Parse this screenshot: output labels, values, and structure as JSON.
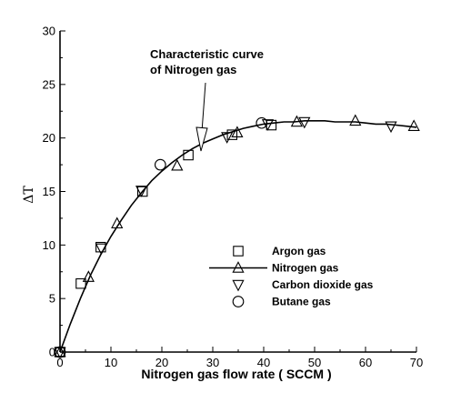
{
  "chart_data": {
    "type": "scatter",
    "xlabel": "Nitrogen gas flow rate ( SCCM )",
    "ylabel": "ΔT",
    "xlim": [
      0,
      70
    ],
    "ylim": [
      0,
      30
    ],
    "x_ticks": [
      0,
      10,
      20,
      30,
      40,
      50,
      60,
      70
    ],
    "y_ticks": [
      0,
      5,
      10,
      15,
      20,
      25,
      30
    ],
    "grid": false,
    "legend_placement": "lower-right",
    "annotation": {
      "lines": [
        "Characteristic curve",
        "of Nitrogen gas"
      ],
      "points_to": [
        28,
        18.5
      ]
    },
    "curve": {
      "name": "Nitrogen gas",
      "x": [
        0,
        2,
        4,
        6,
        8,
        10,
        12,
        14,
        16,
        18,
        20,
        22,
        24,
        26,
        28,
        30,
        32,
        34,
        36,
        38,
        40,
        42,
        44,
        46,
        48,
        50,
        52,
        54,
        56,
        58,
        60,
        62,
        64,
        66,
        68,
        70
      ],
      "y": [
        0,
        2.6,
        5.0,
        7.2,
        9.1,
        10.8,
        12.3,
        13.7,
        14.9,
        16.0,
        16.9,
        17.7,
        18.4,
        19.0,
        19.5,
        19.9,
        20.3,
        20.6,
        20.9,
        21.1,
        21.3,
        21.4,
        21.5,
        21.5,
        21.6,
        21.6,
        21.6,
        21.5,
        21.5,
        21.5,
        21.4,
        21.3,
        21.3,
        21.2,
        21.1,
        21.0
      ]
    },
    "series": [
      {
        "name": "Argon gas",
        "marker": "square",
        "x": [
          0,
          4.1,
          8.0,
          16.2,
          25.2,
          33.8,
          41.5
        ],
        "y": [
          0,
          6.4,
          9.8,
          15.0,
          18.4,
          20.3,
          21.2
        ]
      },
      {
        "name": "Nitrogen gas",
        "marker": "triangle-up",
        "x": [
          0,
          5.6,
          11.2,
          23.0,
          34.8,
          46.5,
          58.0,
          69.5
        ],
        "y": [
          0,
          7.0,
          12.0,
          17.4,
          20.5,
          21.5,
          21.6,
          21.1
        ]
      },
      {
        "name": "Carbon dioxide gas",
        "marker": "triangle-down",
        "x": [
          0,
          8.1,
          16.0,
          32.8,
          40.8,
          48.0,
          65.0
        ],
        "y": [
          0,
          9.7,
          15.1,
          20.1,
          21.3,
          21.5,
          21.1
        ]
      },
      {
        "name": "Butane gas",
        "marker": "circle",
        "x": [
          0,
          19.7,
          39.6
        ],
        "y": [
          0,
          17.5,
          21.4
        ]
      }
    ]
  }
}
